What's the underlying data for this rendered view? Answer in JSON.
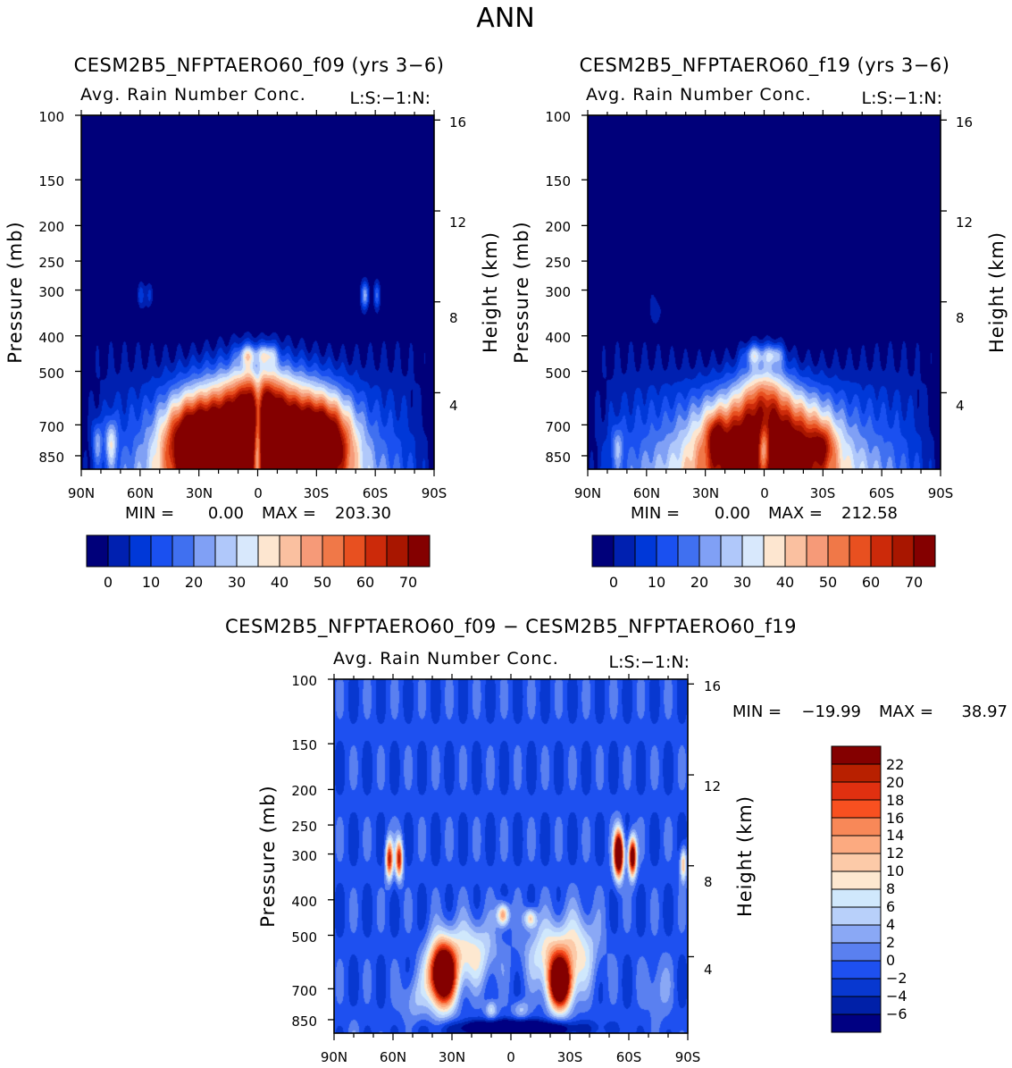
{
  "figure_title": "ANN",
  "chart_data": [
    {
      "type": "heatmap",
      "id": "p1",
      "title": "CESM2B5_NFPTAERO60_f09 (yrs 3-6)",
      "subtitle": "Avg. Rain Number Conc.",
      "units_label": "L:S:-1:N:",
      "ylabel": "Pressure (mb)",
      "ylabel_right": "Height (km)",
      "x_ticks": [
        "90N",
        "60N",
        "30N",
        "0",
        "30S",
        "60S",
        "90S"
      ],
      "y_ticks": [
        "100",
        "150",
        "200",
        "250",
        "300",
        "400",
        "500",
        "700",
        "850"
      ],
      "y_ticks_right": [
        "16",
        "12",
        "8",
        "4"
      ],
      "stats": {
        "min_label": "MIN =",
        "min": "0.00",
        "max_label": "MAX =",
        "max": "203.30"
      },
      "colorbar_labels": [
        "0",
        "10",
        "20",
        "30",
        "40",
        "50",
        "60",
        "70"
      ],
      "colorbar_colors": [
        "#00007a",
        "#0020b0",
        "#0038d8",
        "#1a50f0",
        "#4070f0",
        "#80a0f5",
        "#b0c8fa",
        "#d8e8fc",
        "#fde6d0",
        "#fac0a0",
        "#f69a78",
        "#f07848",
        "#e85020",
        "#cc2a0a",
        "#a81600",
        "#840000"
      ],
      "features": [
        {
          "lat": -15,
          "p": 760,
          "a": 62,
          "wx": 20,
          "wy": 22
        },
        {
          "lat": 15,
          "p": 760,
          "a": 62,
          "wx": 20,
          "wy": 22
        },
        {
          "lat": -35,
          "p": 780,
          "a": 55,
          "wx": 14,
          "wy": 16
        },
        {
          "lat": 35,
          "p": 780,
          "a": 55,
          "wx": 14,
          "wy": 16
        },
        {
          "lat": -5,
          "p": 450,
          "a": 25,
          "wx": 5,
          "wy": 4
        },
        {
          "lat": 5,
          "p": 450,
          "a": 25,
          "wx": 5,
          "wy": 4
        },
        {
          "lat": 0,
          "p": 600,
          "a": 30,
          "wx": 14,
          "wy": 15
        },
        {
          "lat": 0,
          "p": 800,
          "a": -55,
          "wx": 2.5,
          "wy": 22
        },
        {
          "lat": -55,
          "p": 310,
          "a": 28,
          "wx": 2.2,
          "wy": 5
        },
        {
          "lat": -61,
          "p": 310,
          "a": 18,
          "wx": 1.8,
          "wy": 5
        },
        {
          "lat": 60,
          "p": 310,
          "a": 16,
          "wx": 1.8,
          "wy": 5
        },
        {
          "lat": 55,
          "p": 310,
          "a": 14,
          "wx": 1.8,
          "wy": 5
        },
        {
          "lat": 75,
          "p": 780,
          "a": 26,
          "wx": 3,
          "wy": 9
        },
        {
          "lat": 82,
          "p": 780,
          "a": 20,
          "wx": 2.5,
          "wy": 8
        }
      ]
    },
    {
      "type": "heatmap",
      "id": "p2",
      "title": "CESM2B5_NFPTAERO60_f19 (yrs 3-6)",
      "subtitle": "Avg. Rain Number Conc.",
      "units_label": "L:S:-1:N:",
      "ylabel": "Pressure (mb)",
      "ylabel_right": "Height (km)",
      "x_ticks": [
        "90N",
        "60N",
        "30N",
        "0",
        "30S",
        "60S",
        "90S"
      ],
      "y_ticks": [
        "100",
        "150",
        "200",
        "250",
        "300",
        "400",
        "500",
        "700",
        "850"
      ],
      "y_ticks_right": [
        "16",
        "12",
        "8",
        "4"
      ],
      "stats": {
        "min_label": "MIN =",
        "min": "0.00",
        "max_label": "MAX =",
        "max": "212.58"
      },
      "colorbar_labels": [
        "0",
        "10",
        "20",
        "30",
        "40",
        "50",
        "60",
        "70"
      ],
      "colorbar_colors": [
        "#00007a",
        "#0020b0",
        "#0038d8",
        "#1a50f0",
        "#4070f0",
        "#80a0f5",
        "#b0c8fa",
        "#d8e8fc",
        "#fde6d0",
        "#fac0a0",
        "#f69a78",
        "#f07848",
        "#e85020",
        "#cc2a0a",
        "#a81600",
        "#840000"
      ],
      "features": [
        {
          "lat": -15,
          "p": 790,
          "a": 48,
          "wx": 20,
          "wy": 18
        },
        {
          "lat": 15,
          "p": 790,
          "a": 48,
          "wx": 20,
          "wy": 18
        },
        {
          "lat": 25,
          "p": 750,
          "a": 22,
          "wx": 4,
          "wy": 8
        },
        {
          "lat": -30,
          "p": 800,
          "a": 22,
          "wx": 6,
          "wy": 8
        },
        {
          "lat": -5,
          "p": 450,
          "a": 25,
          "wx": 5,
          "wy": 4
        },
        {
          "lat": 5,
          "p": 450,
          "a": 25,
          "wx": 5,
          "wy": 4
        },
        {
          "lat": 0,
          "p": 580,
          "a": 32,
          "wx": 13,
          "wy": 14
        },
        {
          "lat": 0,
          "p": 820,
          "a": -40,
          "wx": 3,
          "wy": 10
        },
        {
          "lat": 55,
          "p": 340,
          "a": 10,
          "wx": 3,
          "wy": 6
        },
        {
          "lat": -50,
          "p": 330,
          "a": 6,
          "wx": 2,
          "wy": 6
        },
        {
          "lat": 75,
          "p": 800,
          "a": 16,
          "wx": 3,
          "wy": 8
        }
      ]
    },
    {
      "type": "heatmap",
      "id": "p3",
      "title": "CESM2B5_NFPTAERO60_f09 - CESM2B5_NFPTAERO60_f19",
      "subtitle": "Avg. Rain Number Conc.",
      "units_label": "L:S:-1:N:",
      "ylabel": "Pressure (mb)",
      "ylabel_right": "Height (km)",
      "x_ticks": [
        "90N",
        "60N",
        "30N",
        "0",
        "30S",
        "60S",
        "90S"
      ],
      "y_ticks": [
        "100",
        "150",
        "200",
        "250",
        "300",
        "400",
        "500",
        "700",
        "850"
      ],
      "y_ticks_right": [
        "16",
        "12",
        "8",
        "4"
      ],
      "stats": {
        "min_label": "MIN =",
        "min": "-19.99",
        "max_label": "MAX =",
        "max": "38.97"
      },
      "colorbar_labels": [
        "22",
        "20",
        "18",
        "16",
        "14",
        "12",
        "10",
        "8",
        "6",
        "4",
        "2",
        "0",
        "-2",
        "-4",
        "-6"
      ],
      "colorbar_colors": [
        "#840000",
        "#b82000",
        "#e03010",
        "#f85020",
        "#f88858",
        "#fcaa80",
        "#fccaa8",
        "#fde8d0",
        "#d0e8fc",
        "#b8d0fa",
        "#8aa8f5",
        "#5a80f0",
        "#1e50f0",
        "#0838d0",
        "#0020a8",
        "#000082"
      ]
    }
  ]
}
